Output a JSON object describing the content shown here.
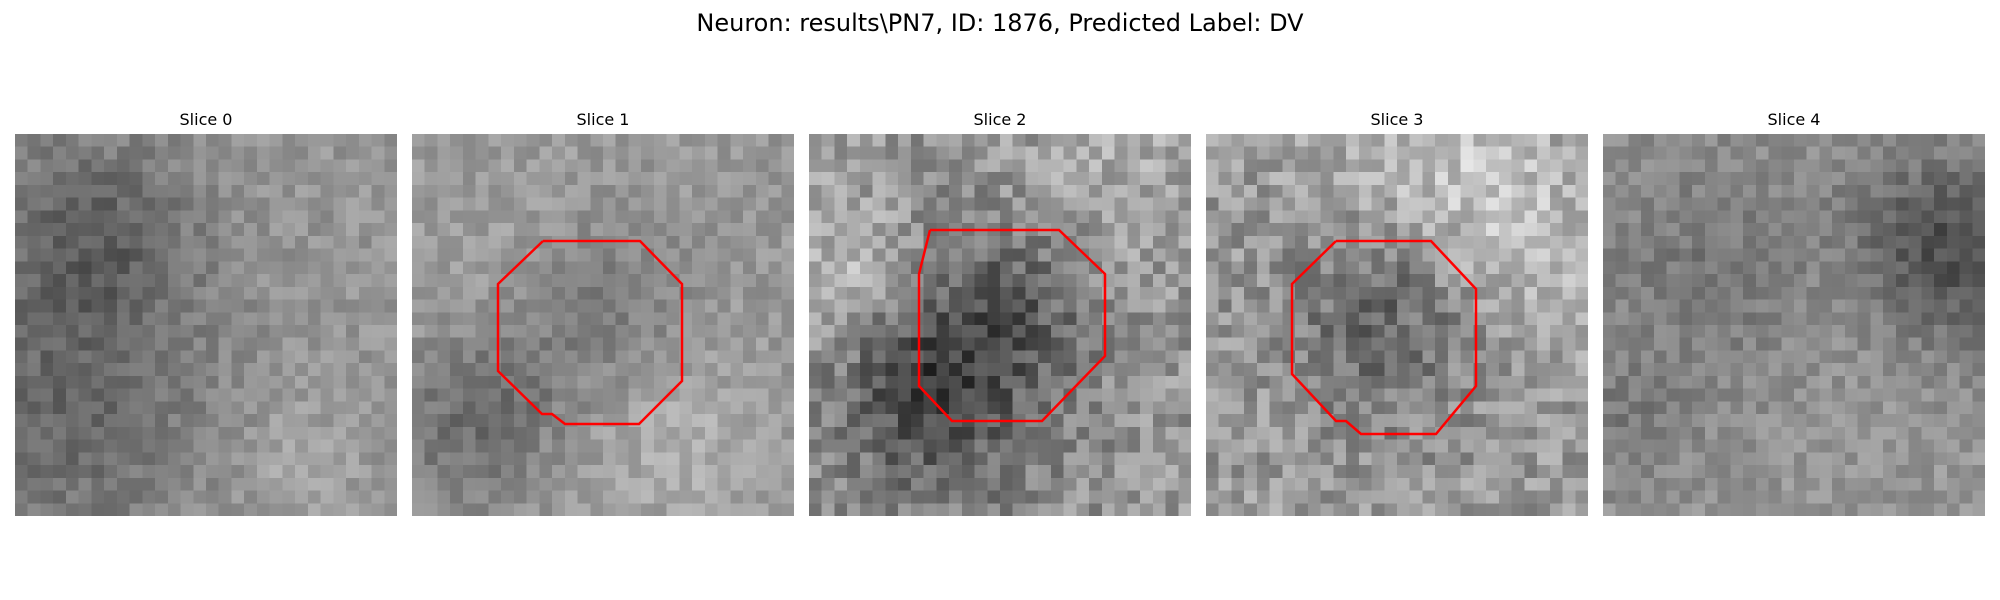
{
  "figure": {
    "title": "Neuron: results\\PN7, ID: 1876, Predicted Label: DV",
    "colormap": "gray",
    "roi_color": "#ff0000",
    "grid_cells": 30
  },
  "slices": [
    {
      "label": "Slice 0",
      "has_roi": false,
      "seed": 11
    },
    {
      "label": "Slice 1",
      "has_roi": true,
      "seed": 23
    },
    {
      "label": "Slice 2",
      "has_roi": true,
      "seed": 37
    },
    {
      "label": "Slice 3",
      "has_roi": true,
      "seed": 51
    },
    {
      "label": "Slice 4",
      "has_roi": false,
      "seed": 67
    }
  ]
}
